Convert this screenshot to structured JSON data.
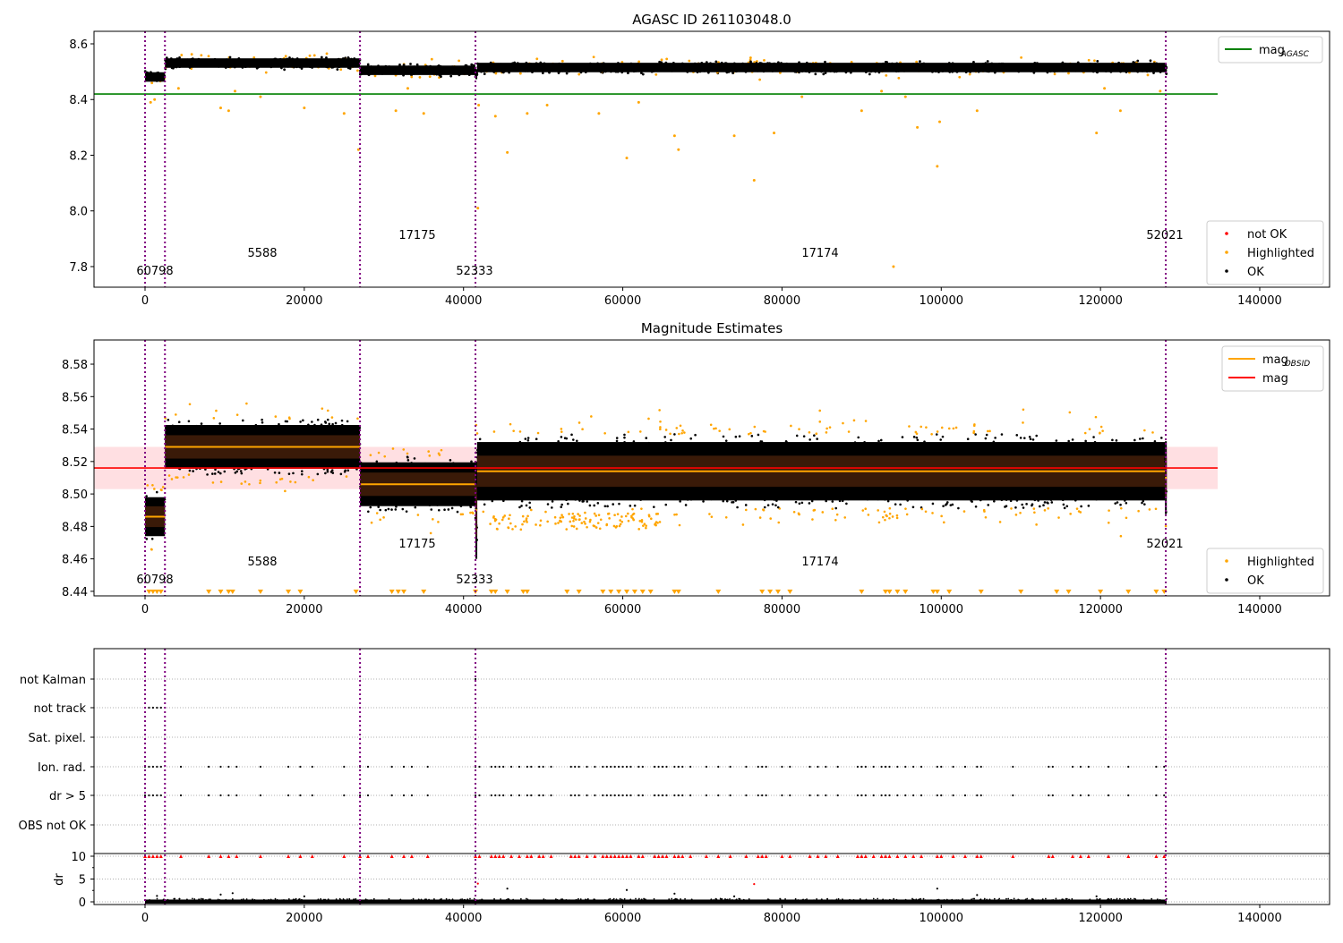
{
  "chart_data": {
    "type": "scatter",
    "x_ticks": [
      0,
      20000,
      40000,
      60000,
      80000,
      100000,
      120000,
      140000
    ],
    "xlim": [
      -6400,
      148800
    ],
    "obs_boundaries": [
      0,
      2500,
      27000,
      41500,
      128200
    ],
    "segments": [
      {
        "obsid": "60798",
        "start": 0,
        "end": 2500,
        "agasc_mag": 8.481,
        "mag_obsid": 8.486,
        "std": 0.008
      },
      {
        "obsid": "5588",
        "start": 2500,
        "end": 27000,
        "agasc_mag": 8.531,
        "mag_obsid": 8.529,
        "std": 0.009
      },
      {
        "obsid": "17175",
        "start": 27000,
        "end": 41500,
        "agasc_mag": 8.505,
        "mag_obsid": 8.506,
        "std": 0.009
      },
      {
        "obsid": "52333",
        "start": 41500,
        "end": 41700,
        "agasc_mag": 8.49,
        "mag_obsid": 8.49,
        "std": 0.02
      },
      {
        "obsid": "17174",
        "start": 41700,
        "end": 128100,
        "agasc_mag": 8.515,
        "mag_obsid": 8.514,
        "std": 0.012
      },
      {
        "obsid": "52021",
        "start": 128100,
        "end": 128300,
        "agasc_mag": 8.51,
        "mag_obsid": 8.51,
        "std": 0.015
      }
    ],
    "subplots": [
      {
        "title": "AGASC ID 261103048.0",
        "ylim": [
          7.726,
          8.645
        ],
        "y_ticks": [
          "7.8",
          "8.0",
          "8.2",
          "8.4",
          "8.6"
        ],
        "mag_agasc": 8.42,
        "legend_top": {
          "position": "upper right",
          "entries": [
            {
              "label": "mag",
              "sub": "AGASC",
              "color": "#008000"
            }
          ]
        },
        "legend_bottom": {
          "position": "lower right",
          "entries": [
            {
              "label": "not OK",
              "color": "#ff0000"
            },
            {
              "label": "Highlighted",
              "color": "#ffa500"
            },
            {
              "label": "OK",
              "color": "#000000"
            }
          ]
        },
        "outliers": [
          [
            700,
            8.39
          ],
          [
            1200,
            8.4
          ],
          [
            4200,
            8.44
          ],
          [
            9500,
            8.37
          ],
          [
            10500,
            8.36
          ],
          [
            11300,
            8.43
          ],
          [
            14500,
            8.41
          ],
          [
            20000,
            8.37
          ],
          [
            25000,
            8.35
          ],
          [
            26800,
            8.22
          ],
          [
            31500,
            8.36
          ],
          [
            33000,
            8.44
          ],
          [
            35000,
            8.35
          ],
          [
            41800,
            8.01
          ],
          [
            41900,
            8.38
          ],
          [
            44000,
            8.34
          ],
          [
            45500,
            8.21
          ],
          [
            48000,
            8.35
          ],
          [
            50500,
            8.38
          ],
          [
            57000,
            8.35
          ],
          [
            60500,
            8.19
          ],
          [
            62000,
            8.39
          ],
          [
            66500,
            8.27
          ],
          [
            67000,
            8.22
          ],
          [
            74000,
            8.27
          ],
          [
            76500,
            8.11
          ],
          [
            79000,
            8.28
          ],
          [
            82500,
            8.41
          ],
          [
            90000,
            8.36
          ],
          [
            92500,
            8.43
          ],
          [
            94000,
            7.8
          ],
          [
            95500,
            8.41
          ],
          [
            97000,
            8.3
          ],
          [
            99500,
            8.16
          ],
          [
            99800,
            8.32
          ],
          [
            104500,
            8.36
          ],
          [
            119500,
            8.28
          ],
          [
            120500,
            8.44
          ],
          [
            122500,
            8.36
          ],
          [
            127500,
            8.43
          ]
        ]
      },
      {
        "title": "Magnitude Estimates",
        "ylim": [
          8.4372,
          8.5949
        ],
        "y_ticks": [
          "8.44",
          "8.46",
          "8.48",
          "8.50",
          "8.52",
          "8.54",
          "8.56",
          "8.58"
        ],
        "mag": 8.516,
        "mag_band": [
          8.503,
          8.529
        ],
        "legend_top": {
          "position": "upper right",
          "entries": [
            {
              "label": "mag",
              "sub": "OBSID",
              "color": "#ffa500"
            },
            {
              "label": "mag",
              "sub": "",
              "color": "#ff0000"
            }
          ]
        },
        "legend_bottom": {
          "position": "lower right",
          "entries": [
            {
              "label": "Highlighted",
              "color": "#ffa500"
            },
            {
              "label": "OK",
              "color": "#000000"
            }
          ]
        },
        "clipped_at_bottom": [
          500,
          1000,
          1500,
          2000,
          8000,
          9500,
          10500,
          11000,
          14500,
          18000,
          19500,
          26500,
          31000,
          31800,
          32500,
          35000,
          41500,
          43500,
          44000,
          45500,
          47500,
          48000,
          53000,
          54500,
          57500,
          58500,
          59500,
          60500,
          61500,
          62500,
          63500,
          66500,
          67000,
          72000,
          77500,
          78500,
          79500,
          81000,
          90000,
          93000,
          93500,
          94500,
          95500,
          99000,
          99500,
          101000,
          105000,
          110000,
          114500,
          116000,
          120000,
          123500,
          127000,
          128000
        ]
      },
      {
        "categories": [
          "not Kalman",
          "not track",
          "Sat. pixel.",
          "Ion. rad.",
          "dr > 5",
          "OBS not OK"
        ],
        "dr_label": "dr",
        "dr_ticks": [
          "0",
          "5",
          "10"
        ],
        "flag_x": {
          "not Kalman": [
            41500
          ],
          "not track": [
            500,
            1000,
            1500,
            2000
          ],
          "Ion. rad.": [
            0,
            500,
            1000,
            1500,
            2000,
            4500,
            8000,
            9500,
            10500,
            11500,
            14500,
            18000,
            19500,
            21000,
            25000,
            27000,
            28000,
            31000,
            32500,
            33500,
            35500,
            41500,
            42000,
            43500,
            44000,
            44500,
            45000,
            46000,
            47000,
            48000,
            48500,
            49500,
            50000,
            51000,
            53500,
            54000,
            54500,
            55500,
            56500,
            57500,
            58000,
            58500,
            59000,
            59500,
            60000,
            60500,
            61000,
            62000,
            62500,
            64000,
            64500,
            65000,
            65500,
            66500,
            67000,
            67500,
            68500,
            70500,
            72000,
            73500,
            75500,
            77000,
            77500,
            78000,
            80000,
            81000,
            83500,
            84500,
            85500,
            87000,
            89500,
            90000,
            90500,
            91500,
            92500,
            93000,
            93500,
            94500,
            95500,
            96500,
            97500,
            99500,
            100000,
            101500,
            103000,
            104500,
            105000,
            109000,
            113500,
            114000,
            116500,
            117500,
            118500,
            121000,
            123500,
            127000,
            128000
          ],
          "dr > 5": [
            0,
            500,
            1000,
            1500,
            2000,
            4500,
            8000,
            9500,
            10500,
            11500,
            14500,
            18000,
            19500,
            21000,
            25000,
            27000,
            28000,
            31000,
            32500,
            33500,
            35500,
            41500,
            42000,
            43500,
            44000,
            44500,
            45000,
            46000,
            47000,
            48000,
            48500,
            49500,
            50000,
            51000,
            53500,
            54000,
            54500,
            55500,
            56500,
            57500,
            58000,
            58500,
            59000,
            59500,
            60000,
            60500,
            61000,
            62000,
            62500,
            64000,
            64500,
            65000,
            65500,
            66500,
            67000,
            67500,
            68500,
            70500,
            72000,
            73500,
            75500,
            77000,
            77500,
            78000,
            80000,
            81000,
            83500,
            84500,
            85500,
            87000,
            89500,
            90000,
            90500,
            91500,
            92500,
            93000,
            93500,
            94500,
            95500,
            96500,
            97500,
            99500,
            100000,
            101500,
            103000,
            104500,
            105000,
            109000,
            113500,
            114000,
            116500,
            117500,
            118500,
            121000,
            123500,
            127000,
            128000
          ]
        },
        "dr_outliers": [
          [
            1500,
            1.3
          ],
          [
            9500,
            1.6
          ],
          [
            11000,
            1.9
          ],
          [
            20000,
            1.2
          ],
          [
            41800,
            4.0
          ],
          [
            45500,
            2.9
          ],
          [
            60500,
            2.6
          ],
          [
            66500,
            1.8
          ],
          [
            74000,
            1.2
          ],
          [
            76500,
            3.9
          ],
          [
            99500,
            2.9
          ],
          [
            104500,
            1.5
          ],
          [
            119500,
            1.2
          ]
        ]
      }
    ]
  }
}
